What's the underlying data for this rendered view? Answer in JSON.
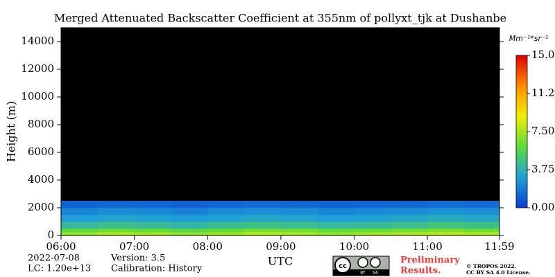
{
  "chart_data": {
    "type": "heatmap",
    "title": "Merged Attenuated Backscatter Coefficient at 355nm of pollyxt_tjk at Dushanbe",
    "y_label": "Height (m)",
    "x_label": "UTC",
    "x_edges": [
      6,
      6.5,
      7,
      7.5,
      8,
      8.5,
      9,
      9.5,
      10,
      10.5,
      11,
      11.5,
      11.983
    ],
    "y_edges": [
      0,
      250,
      500,
      1000,
      1500,
      2000,
      2500
    ],
    "z": [
      [
        7.2,
        7.6,
        7.4,
        7.0,
        7.3,
        7.8,
        7.5,
        7.1,
        7.4,
        7.7,
        7.9,
        7.6
      ],
      [
        6.0,
        6.3,
        6.1,
        5.8,
        6.2,
        6.5,
        6.4,
        6.0,
        6.1,
        6.4,
        6.6,
        6.3
      ],
      [
        4.2,
        4.5,
        4.3,
        4.0,
        4.4,
        4.6,
        4.5,
        4.2,
        4.3,
        4.5,
        4.8,
        4.6
      ],
      [
        3.0,
        3.2,
        3.1,
        2.9,
        3.1,
        3.3,
        3.2,
        3.0,
        3.1,
        3.3,
        3.5,
        3.3
      ],
      [
        2.2,
        2.4,
        2.3,
        2.1,
        2.3,
        2.5,
        2.4,
        2.2,
        2.3,
        2.4,
        2.6,
        2.5
      ],
      [
        1.2,
        1.3,
        1.2,
        1.1,
        1.2,
        1.4,
        1.3,
        1.2,
        1.2,
        1.3,
        1.5,
        1.4
      ]
    ],
    "xlim": [
      6,
      11.983
    ],
    "ylim": [
      0,
      15000
    ],
    "xticks": [
      {
        "value": 6,
        "label": "06:00"
      },
      {
        "value": 7,
        "label": "07:00"
      },
      {
        "value": 8,
        "label": "08:00"
      },
      {
        "value": 9,
        "label": "09:00"
      },
      {
        "value": 10,
        "label": "10:00"
      },
      {
        "value": 11,
        "label": "11:00"
      },
      {
        "value": 11.983,
        "label": "11:59"
      }
    ],
    "yticks": [
      0,
      2000,
      4000,
      6000,
      8000,
      10000,
      12000,
      14000
    ],
    "clim": [
      0,
      15
    ],
    "cticks": [
      {
        "value": 0,
        "label": "0.00"
      },
      {
        "value": 3.75,
        "label": "3.75"
      },
      {
        "value": 7.5,
        "label": "7.50"
      },
      {
        "value": 11.25,
        "label": "11.2"
      },
      {
        "value": 15,
        "label": "15.0"
      }
    ],
    "colorbar_label": "Mm⁻¹*sr⁻¹",
    "colormap": [
      "#0a3cd0",
      "#1fa0d8",
      "#5adc3c",
      "#f0f000",
      "#ff8c00",
      "#e00000"
    ],
    "background": "#000000",
    "footer": {
      "date": "2022-07-08",
      "lc": "LC: 1.20e+13",
      "version": "Version: 3.5",
      "calibration": "Calibration: History",
      "preliminary": "Preliminary",
      "results": "Results.",
      "copyright": "© TROPOS 2022.",
      "license": "CC BY SA 4.0 License.",
      "badge": [
        "cc",
        "BY",
        "SA"
      ]
    }
  }
}
